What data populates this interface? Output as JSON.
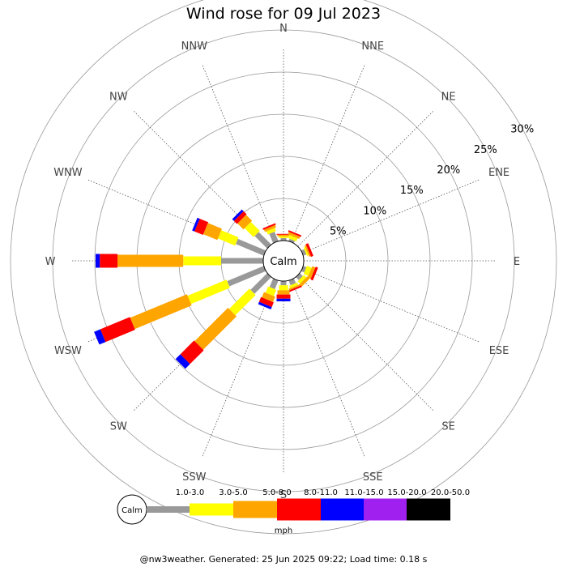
{
  "chart_data": {
    "type": "wind-rose",
    "title": "Wind rose for 09 Jul 2023",
    "directions": [
      "N",
      "NNE",
      "NE",
      "ENE",
      "E",
      "ESE",
      "SE",
      "SSE",
      "S",
      "SSW",
      "SW",
      "WSW",
      "W",
      "WNW",
      "NW",
      "NNW"
    ],
    "radial_ticks": [
      "5%",
      "10%",
      "15%",
      "20%",
      "25%",
      "30%"
    ],
    "radial_max_percent": 30,
    "center_label": "Calm",
    "unit": "mph",
    "bins": [
      {
        "label": "1.0-3.0",
        "color": "#999999"
      },
      {
        "label": "3.0-5.0",
        "color": "#ffff00"
      },
      {
        "label": "5.0-8.0",
        "color": "#ffa500"
      },
      {
        "label": "8.0-11.0",
        "color": "#ff0000"
      },
      {
        "label": "11.0-15.0",
        "color": "#0000ff"
      },
      {
        "label": "15.0-20.0",
        "color": "#a020f0"
      },
      {
        "label": "20.0-50.0",
        "color": "#000000"
      }
    ],
    "series": [
      {
        "direction": "N",
        "values": [
          0.3,
          0.2,
          0.2,
          0.1,
          0,
          0,
          0
        ]
      },
      {
        "direction": "NNE",
        "values": [
          0.3,
          0.4,
          0.3,
          0.2,
          0,
          0,
          0
        ]
      },
      {
        "direction": "NE",
        "values": [
          0,
          0,
          0,
          0,
          0,
          0,
          0
        ]
      },
      {
        "direction": "ENE",
        "values": [
          0.4,
          0.2,
          0.2,
          0.3,
          0,
          0,
          0
        ]
      },
      {
        "direction": "E",
        "values": [
          0,
          0,
          0,
          0,
          0,
          0,
          0
        ]
      },
      {
        "direction": "ESE",
        "values": [
          0.4,
          0.6,
          0.4,
          0.3,
          0,
          0,
          0
        ]
      },
      {
        "direction": "SE",
        "values": [
          0.5,
          0.4,
          0.4,
          0,
          0,
          0,
          0
        ]
      },
      {
        "direction": "SSE",
        "values": [
          0.6,
          0.3,
          0.2,
          0.2,
          0,
          0,
          0
        ]
      },
      {
        "direction": "S",
        "values": [
          0.5,
          0.6,
          0.5,
          0.5,
          0.3,
          0,
          0
        ]
      },
      {
        "direction": "SSW",
        "values": [
          1.1,
          0.8,
          0.7,
          0.6,
          0.3,
          0,
          0
        ]
      },
      {
        "direction": "SW",
        "values": [
          2.8,
          3.4,
          5.6,
          2.3,
          0.8,
          0,
          0
        ]
      },
      {
        "direction": "WSW",
        "values": [
          4.7,
          5.0,
          7.3,
          3.8,
          0.8,
          0,
          0
        ]
      },
      {
        "direction": "W",
        "values": [
          5.0,
          4.5,
          7.8,
          2.1,
          0.5,
          0,
          0
        ]
      },
      {
        "direction": "WNW",
        "values": [
          3.6,
          2.2,
          1.8,
          1.1,
          0.3,
          0,
          0
        ]
      },
      {
        "direction": "NW",
        "values": [
          2.1,
          1.5,
          1.0,
          0.5,
          0.3,
          0,
          0
        ]
      },
      {
        "direction": "NNW",
        "values": [
          1.2,
          0.4,
          0.3,
          0.2,
          0,
          0,
          0
        ]
      }
    ]
  },
  "footer": "@nw3weather. Generated: 25 Jun 2025 09:22; Load time: 0.18 s"
}
